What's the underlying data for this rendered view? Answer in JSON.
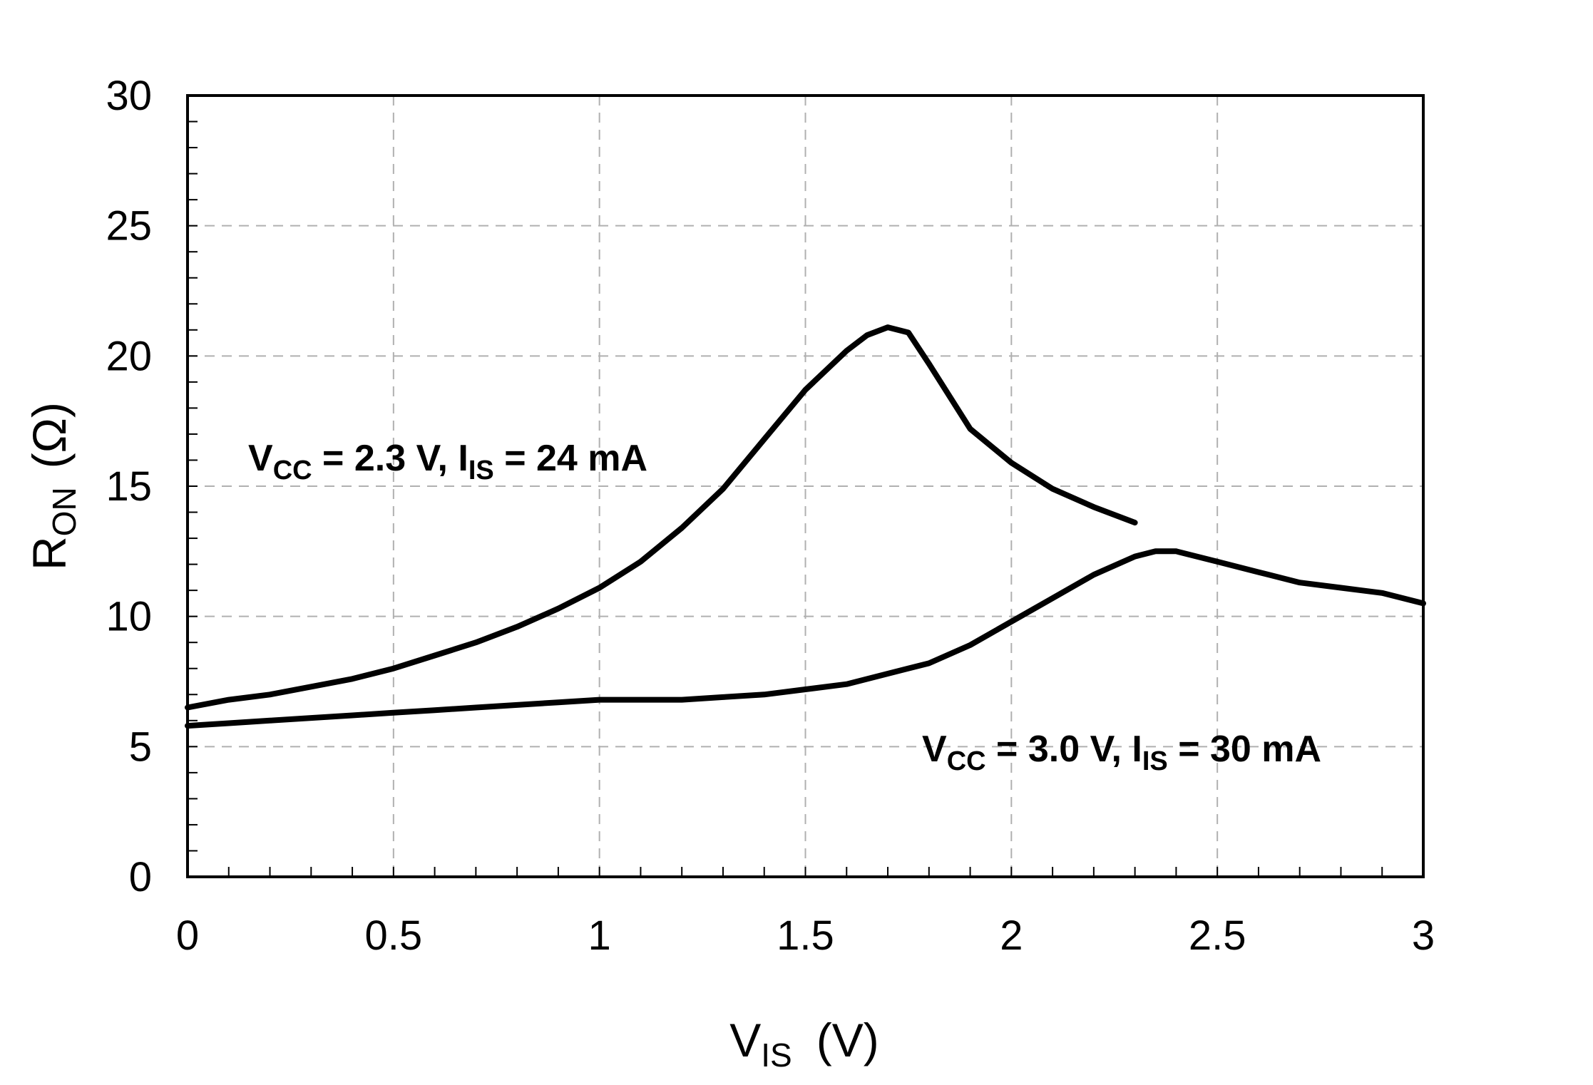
{
  "chart_data": {
    "type": "line",
    "title": "",
    "xlabel": {
      "main": "V",
      "sub": "IS",
      "unit": "(V)"
    },
    "ylabel": {
      "main": "R",
      "sub": "ON",
      "unit": "(Ω)"
    },
    "xlim": [
      0,
      3
    ],
    "ylim": [
      0,
      30
    ],
    "grid": true,
    "x_ticks": [
      0,
      0.5,
      1,
      1.5,
      2,
      2.5,
      3
    ],
    "x_tick_labels": [
      "0",
      "0.5",
      "1",
      "1.5",
      "2",
      "2.5",
      "3"
    ],
    "y_ticks": [
      0,
      5,
      10,
      15,
      20,
      25,
      30
    ],
    "y_tick_labels": [
      "0",
      "5",
      "10",
      "15",
      "20",
      "25",
      "30"
    ],
    "series": [
      {
        "name": "VCC = 2.3 V, IIS = 24 mA",
        "annotation": {
          "v": "V",
          "vsub": "CC",
          "vval": " = 2.3 V, ",
          "i": "I",
          "isub": "IS",
          "ival": " = 24 mA"
        },
        "x": [
          0,
          0.1,
          0.2,
          0.3,
          0.4,
          0.5,
          0.6,
          0.7,
          0.8,
          0.9,
          1.0,
          1.1,
          1.2,
          1.3,
          1.4,
          1.5,
          1.6,
          1.65,
          1.7,
          1.75,
          1.8,
          1.9,
          2.0,
          2.1,
          2.2,
          2.3
        ],
        "y": [
          6.5,
          6.8,
          7.0,
          7.3,
          7.6,
          8.0,
          8.5,
          9.0,
          9.6,
          10.3,
          11.1,
          12.1,
          13.4,
          14.9,
          16.8,
          18.7,
          20.2,
          20.8,
          21.1,
          20.9,
          19.7,
          17.2,
          15.9,
          14.9,
          14.2,
          13.6
        ]
      },
      {
        "name": "VCC = 3.0 V, IIS = 30 mA",
        "annotation": {
          "v": "V",
          "vsub": "CC",
          "vval": " = 3.0 V, ",
          "i": "I",
          "isub": "IS",
          "ival": " = 30 mA"
        },
        "x": [
          0,
          0.1,
          0.2,
          0.3,
          0.4,
          0.5,
          0.6,
          0.7,
          0.8,
          0.9,
          1.0,
          1.1,
          1.2,
          1.3,
          1.4,
          1.5,
          1.6,
          1.7,
          1.8,
          1.9,
          2.0,
          2.1,
          2.2,
          2.3,
          2.35,
          2.4,
          2.5,
          2.6,
          2.7,
          2.8,
          2.9,
          3.0
        ],
        "y": [
          5.8,
          5.9,
          6.0,
          6.1,
          6.2,
          6.3,
          6.4,
          6.5,
          6.6,
          6.7,
          6.8,
          6.8,
          6.8,
          6.9,
          7.0,
          7.2,
          7.4,
          7.8,
          8.2,
          8.9,
          9.8,
          10.7,
          11.6,
          12.3,
          12.5,
          12.5,
          12.1,
          11.7,
          11.3,
          11.1,
          10.9,
          10.5
        ]
      }
    ]
  }
}
